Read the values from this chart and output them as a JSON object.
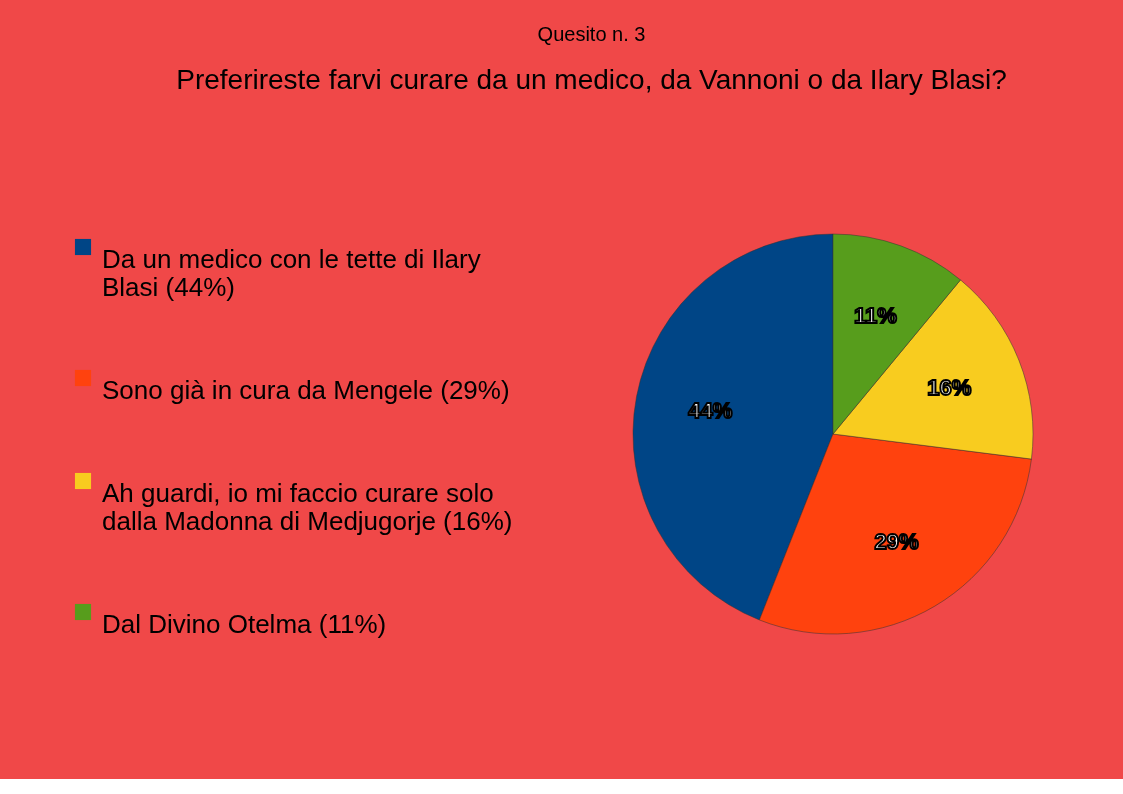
{
  "chart_data": {
    "type": "pie",
    "title": "Quesito n. 3",
    "subtitle": "Preferireste farvi curare da un medico, da Vannoni o da Ilary Blasi?",
    "categories": [
      "Da un medico con le tette di Ilary Blasi (44%)",
      "Sono già in cura da Mengele (29%)",
      "Ah guardi, io mi faccio curare solo dalla Madonna di Medjugorje (16%)",
      "Dal Divino Otelma (11%)"
    ],
    "values": [
      44,
      29,
      16,
      11
    ],
    "colors": [
      "#004586",
      "#ff420e",
      "#f8cc1f",
      "#579d1c"
    ],
    "value_labels": [
      "44%",
      "29%",
      "16%",
      "11%"
    ],
    "legend": "left"
  }
}
